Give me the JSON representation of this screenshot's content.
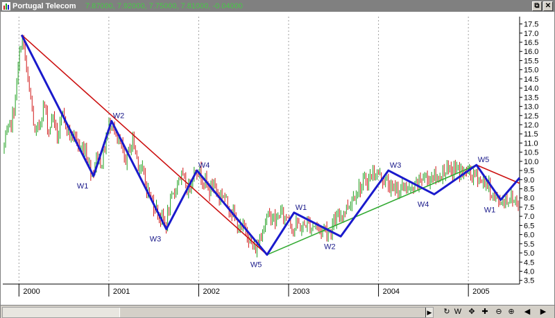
{
  "window": {
    "title": "Portugal Telecom",
    "quote_text": "7.87000, 7.92000, 7.75000, 7.81000, -0.04000",
    "restore_glyph": "⧉",
    "close_glyph": "✕"
  },
  "colors": {
    "up_candle": "#1fa01f",
    "down_candle": "#d01818",
    "wave_line": "#1a1acc",
    "downtrend_line": "#cc1010",
    "uptrend_line": "#33aa33",
    "grid": "#a0a0a0"
  },
  "toolbar": {
    "scroll_right_icon": "triangle-right",
    "buttons": [
      {
        "name": "refresh",
        "glyph": "↻"
      },
      {
        "name": "period-w",
        "glyph": "W"
      },
      {
        "name": "pan",
        "glyph": "✥"
      },
      {
        "name": "crosshair",
        "glyph": "✚"
      },
      {
        "name": "zoom-out",
        "glyph": "⊖"
      },
      {
        "name": "zoom-in",
        "glyph": "⊕"
      },
      {
        "name": "prev",
        "glyph": "◀"
      },
      {
        "name": "next",
        "glyph": "▶"
      }
    ]
  },
  "chart_data": {
    "type": "candlestick",
    "ylim": [
      3.3,
      17.9
    ],
    "xlim": [
      1999.82,
      2005.57
    ],
    "yticks": [
      3.5,
      4.0,
      4.5,
      5.0,
      5.5,
      6.0,
      6.5,
      7.0,
      7.5,
      8.0,
      8.5,
      9.0,
      9.5,
      10.0,
      10.5,
      11.0,
      11.5,
      12.0,
      12.5,
      13.0,
      13.5,
      14.0,
      14.5,
      15.0,
      15.5,
      16.0,
      16.5,
      17.0,
      17.5
    ],
    "ytick_labels": [
      "3.5",
      "4.0",
      "4.5",
      "5.0",
      "5.5",
      "6.0",
      "6.5",
      "7.0",
      "7.5",
      "8.0",
      "8.5",
      "9.0",
      "9.5",
      "10.0",
      "10.5",
      "11.0",
      "11.5",
      "12.0",
      "12.5",
      "13.0",
      "13.5",
      "14.0",
      "14.5",
      "15.0",
      "15.5",
      "16.0",
      "16.5",
      "17.0",
      "17.5"
    ],
    "xticks": [
      2000,
      2001,
      2002,
      2003,
      2004,
      2005
    ],
    "xtick_labels": [
      "2000",
      "2001",
      "2002",
      "2003",
      "2004",
      "2005"
    ],
    "grid": true,
    "price_path": [
      [
        1999.82,
        10.6
      ],
      [
        1999.88,
        11.6
      ],
      [
        1999.94,
        12.6
      ],
      [
        1999.98,
        14.5
      ],
      [
        2000.03,
        16.9
      ],
      [
        2000.06,
        16.0
      ],
      [
        2000.1,
        14.2
      ],
      [
        2000.14,
        13.1
      ],
      [
        2000.18,
        11.3
      ],
      [
        2000.23,
        12.1
      ],
      [
        2000.28,
        13.2
      ],
      [
        2000.33,
        11.6
      ],
      [
        2000.38,
        12.6
      ],
      [
        2000.43,
        11.2
      ],
      [
        2000.48,
        12.4
      ],
      [
        2000.53,
        12.0
      ],
      [
        2000.58,
        11.3
      ],
      [
        2000.63,
        11.4
      ],
      [
        2000.68,
        10.5
      ],
      [
        2000.73,
        10.9
      ],
      [
        2000.78,
        9.8
      ],
      [
        2000.82,
        9.3
      ],
      [
        2000.87,
        10.4
      ],
      [
        2000.92,
        9.8
      ],
      [
        2000.96,
        11.0
      ],
      [
        2001.0,
        11.9
      ],
      [
        2001.04,
        12.3
      ],
      [
        2001.08,
        11.1
      ],
      [
        2001.13,
        10.9
      ],
      [
        2001.18,
        10.0
      ],
      [
        2001.23,
        10.7
      ],
      [
        2001.27,
        11.2
      ],
      [
        2001.32,
        10.0
      ],
      [
        2001.37,
        9.5
      ],
      [
        2001.42,
        8.6
      ],
      [
        2001.47,
        7.9
      ],
      [
        2001.53,
        7.4
      ],
      [
        2001.58,
        6.9
      ],
      [
        2001.63,
        6.5
      ],
      [
        2001.68,
        7.6
      ],
      [
        2001.73,
        8.3
      ],
      [
        2001.78,
        9.2
      ],
      [
        2001.83,
        9.0
      ],
      [
        2001.88,
        8.4
      ],
      [
        2001.93,
        9.2
      ],
      [
        2001.97,
        9.6
      ],
      [
        2002.02,
        9.3
      ],
      [
        2002.07,
        8.9
      ],
      [
        2002.12,
        8.4
      ],
      [
        2002.17,
        8.9
      ],
      [
        2002.22,
        8.0
      ],
      [
        2002.27,
        8.3
      ],
      [
        2002.32,
        7.6
      ],
      [
        2002.37,
        7.3
      ],
      [
        2002.42,
        6.6
      ],
      [
        2002.47,
        6.2
      ],
      [
        2002.52,
        6.5
      ],
      [
        2002.57,
        5.6
      ],
      [
        2002.62,
        5.1
      ],
      [
        2002.66,
        5.5
      ],
      [
        2002.71,
        6.4
      ],
      [
        2002.76,
        6.9
      ],
      [
        2002.81,
        7.1
      ],
      [
        2002.86,
        6.6
      ],
      [
        2002.9,
        7.3
      ],
      [
        2002.95,
        6.9
      ],
      [
        2003.0,
        7.1
      ],
      [
        2003.05,
        6.2
      ],
      [
        2003.1,
        6.6
      ],
      [
        2003.15,
        6.3
      ],
      [
        2003.2,
        6.7
      ],
      [
        2003.25,
        6.4
      ],
      [
        2003.3,
        6.6
      ],
      [
        2003.35,
        6.2
      ],
      [
        2003.4,
        6.4
      ],
      [
        2003.45,
        6.1
      ],
      [
        2003.5,
        6.6
      ],
      [
        2003.55,
        6.9
      ],
      [
        2003.6,
        7.2
      ],
      [
        2003.65,
        7.5
      ],
      [
        2003.7,
        7.9
      ],
      [
        2003.75,
        8.4
      ],
      [
        2003.8,
        8.6
      ],
      [
        2003.85,
        8.9
      ],
      [
        2003.9,
        9.1
      ],
      [
        2003.95,
        9.4
      ],
      [
        2004.0,
        9.3
      ],
      [
        2004.05,
        9.0
      ],
      [
        2004.1,
        8.8
      ],
      [
        2004.15,
        8.4
      ],
      [
        2004.2,
        8.6
      ],
      [
        2004.25,
        8.4
      ],
      [
        2004.3,
        8.7
      ],
      [
        2004.35,
        8.3
      ],
      [
        2004.4,
        8.5
      ],
      [
        2004.45,
        8.9
      ],
      [
        2004.5,
        9.2
      ],
      [
        2004.55,
        9.0
      ],
      [
        2004.6,
        9.3
      ],
      [
        2004.65,
        9.0
      ],
      [
        2004.7,
        9.4
      ],
      [
        2004.75,
        9.6
      ],
      [
        2004.8,
        9.3
      ],
      [
        2004.85,
        9.6
      ],
      [
        2004.9,
        9.5
      ],
      [
        2004.95,
        9.3
      ],
      [
        2005.0,
        9.5
      ],
      [
        2005.05,
        9.1
      ],
      [
        2005.1,
        9.3
      ],
      [
        2005.15,
        8.8
      ],
      [
        2005.2,
        8.9
      ],
      [
        2005.25,
        8.3
      ],
      [
        2005.3,
        8.0
      ],
      [
        2005.35,
        7.8
      ],
      [
        2005.4,
        7.9
      ],
      [
        2005.45,
        8.0
      ],
      [
        2005.5,
        7.9
      ],
      [
        2005.55,
        7.8
      ]
    ],
    "elliott_waves": {
      "color": "blue",
      "points": [
        {
          "x": 2000.03,
          "y": 16.9,
          "label": ""
        },
        {
          "x": 2000.83,
          "y": 9.2,
          "label": "W1"
        },
        {
          "x": 2001.03,
          "y": 12.2,
          "label": "W2"
        },
        {
          "x": 2001.64,
          "y": 6.3,
          "label": "W3"
        },
        {
          "x": 2001.98,
          "y": 9.5,
          "label": "W4"
        },
        {
          "x": 2002.76,
          "y": 4.9,
          "label": "W5"
        },
        {
          "x": 2003.06,
          "y": 7.2,
          "label": "W1"
        },
        {
          "x": 2003.58,
          "y": 5.9,
          "label": "W2"
        },
        {
          "x": 2004.11,
          "y": 9.5,
          "label": "W3"
        },
        {
          "x": 2004.62,
          "y": 8.2,
          "label": "W4"
        },
        {
          "x": 2005.09,
          "y": 9.8,
          "label": "W5"
        },
        {
          "x": 2005.36,
          "y": 7.9,
          "label": "W1"
        },
        {
          "x": 2005.57,
          "y": 9.1,
          "label": ""
        }
      ]
    },
    "trendlines": [
      {
        "color": "red",
        "x": [
          2000.03,
          2002.76
        ],
        "y": [
          16.9,
          4.9
        ]
      },
      {
        "color": "green",
        "x": [
          2002.76,
          2005.09
        ],
        "y": [
          4.9,
          9.8
        ]
      },
      {
        "color": "red",
        "x": [
          2005.09,
          2005.57
        ],
        "y": [
          9.8,
          8.8
        ]
      }
    ]
  }
}
